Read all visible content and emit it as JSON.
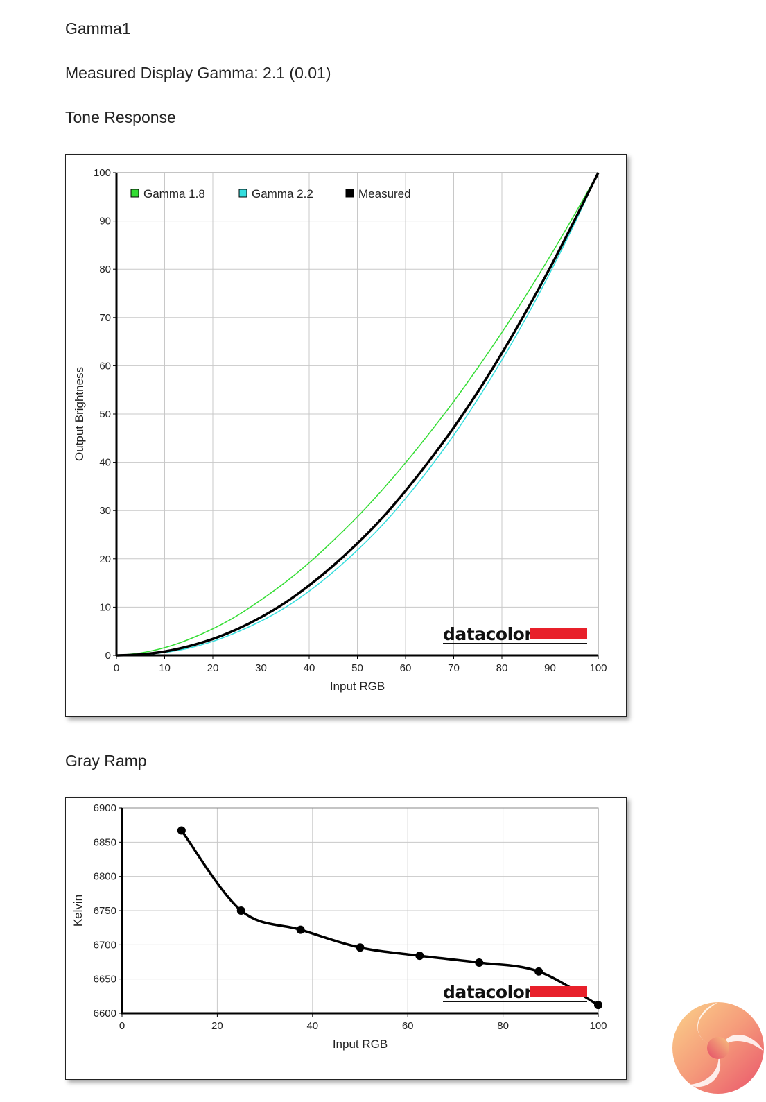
{
  "page": {
    "title": "Gamma1",
    "measured_gamma": "Measured Display Gamma: 2.1 (0.01)",
    "tone_response_heading": "Tone Response",
    "gray_ramp_heading": "Gray Ramp"
  },
  "brand": {
    "name": "datacolor",
    "accent_color": "#e8202a"
  },
  "chart_data": [
    {
      "id": "tone-response",
      "type": "line",
      "title": "",
      "xlabel": "Input RGB",
      "ylabel": "Output Brightness",
      "xlim": [
        0,
        100
      ],
      "ylim": [
        0,
        100
      ],
      "x_ticks": [
        0,
        10,
        20,
        30,
        40,
        50,
        60,
        70,
        80,
        90,
        100
      ],
      "y_ticks": [
        0,
        10,
        20,
        30,
        40,
        50,
        60,
        70,
        80,
        90,
        100
      ],
      "grid": true,
      "legend": "top-left",
      "x": [
        0,
        5,
        10,
        15,
        20,
        25,
        30,
        35,
        40,
        45,
        50,
        55,
        60,
        65,
        70,
        75,
        80,
        85,
        90,
        95,
        100
      ],
      "series": [
        {
          "name": "Gamma 1.8",
          "color": "#33dd33",
          "values": [
            0,
            0.5,
            1.6,
            3.3,
            5.5,
            8.2,
            11.5,
            15.1,
            19.2,
            23.8,
            28.7,
            34.1,
            39.9,
            46.1,
            52.6,
            59.6,
            66.9,
            74.6,
            82.7,
            91.2,
            100
          ]
        },
        {
          "name": "Gamma 2.2",
          "color": "#33dddd",
          "values": [
            0,
            0.1,
            0.6,
            1.5,
            2.9,
            4.8,
            7.1,
            9.9,
            13.3,
            17.3,
            21.8,
            26.8,
            32.5,
            38.8,
            45.6,
            53.1,
            61.2,
            69.9,
            79.3,
            89.3,
            100
          ]
        },
        {
          "name": "Measured",
          "color": "#000000",
          "values": [
            0,
            0.2,
            0.8,
            1.9,
            3.4,
            5.4,
            7.9,
            10.9,
            14.5,
            18.6,
            23.2,
            28.3,
            34.1,
            40.4,
            47.2,
            54.6,
            62.6,
            71.2,
            80.3,
            90.0,
            100
          ]
        }
      ]
    },
    {
      "id": "gray-ramp",
      "type": "line",
      "title": "",
      "xlabel": "Input RGB",
      "ylabel": "Kelvin",
      "xlim": [
        0,
        100
      ],
      "ylim": [
        6600,
        6900
      ],
      "x_ticks": [
        0,
        20,
        40,
        60,
        80,
        100
      ],
      "y_ticks": [
        6600,
        6650,
        6700,
        6750,
        6800,
        6850,
        6900
      ],
      "grid": true,
      "series": [
        {
          "color": "#000000",
          "x": [
            12.5,
            25,
            37.5,
            50,
            62.5,
            75,
            87.5,
            100
          ],
          "values": [
            6867,
            6750,
            6722,
            6696,
            6684,
            6674,
            6661,
            6612
          ]
        }
      ]
    }
  ]
}
